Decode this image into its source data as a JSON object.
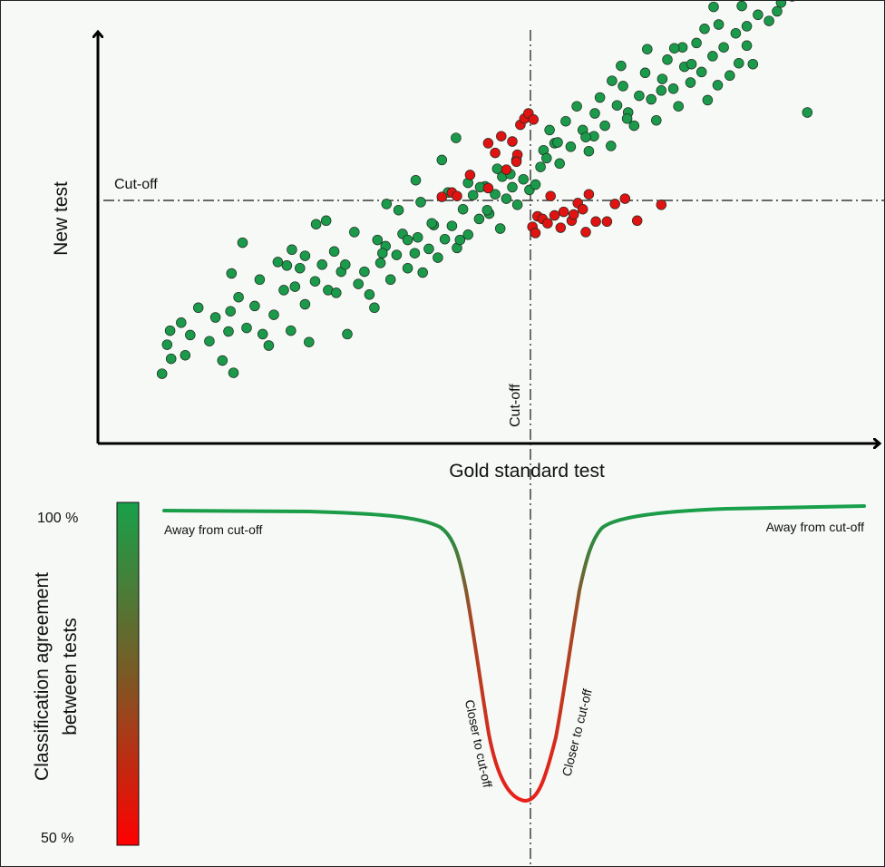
{
  "scatter": {
    "y_axis_label": "New test",
    "x_axis_label": "Gold standard test",
    "h_cutoff_label": "Cut-off",
    "v_cutoff_label": "Cut-off",
    "colors": {
      "agree": "#1a9a4a",
      "disagree": "#e01212",
      "stroke": "#1f2d1f"
    },
    "points": [
      [
        -3.66,
        -1.97,
        0
      ],
      [
        -3.57,
        -1.8,
        0
      ],
      [
        -3.61,
        -1.64,
        0
      ],
      [
        -3.58,
        -1.48,
        0
      ],
      [
        -3.47,
        -1.39,
        0
      ],
      [
        -3.43,
        -1.76,
        0
      ],
      [
        -3.38,
        -1.53,
        0
      ],
      [
        -3.3,
        -1.22,
        0
      ],
      [
        -3.19,
        -1.6,
        0
      ],
      [
        -3.13,
        -1.33,
        0
      ],
      [
        -3.06,
        -1.82,
        0
      ],
      [
        -3.0,
        -1.49,
        0
      ],
      [
        -2.95,
        -1.96,
        0
      ],
      [
        -2.97,
        -0.83,
        0
      ],
      [
        -2.9,
        -1.1,
        0
      ],
      [
        -2.82,
        -1.45,
        0
      ],
      [
        -2.74,
        -1.2,
        0
      ],
      [
        -2.69,
        -0.9,
        0
      ],
      [
        -2.6,
        -1.65,
        0
      ],
      [
        -2.55,
        -1.3,
        0
      ],
      [
        -2.51,
        -0.7,
        0
      ],
      [
        -2.45,
        -1.02,
        0
      ],
      [
        -2.38,
        -1.48,
        0
      ],
      [
        -2.34,
        -0.98,
        0
      ],
      [
        -2.29,
        -0.77,
        0
      ],
      [
        -2.24,
        -1.18,
        0
      ],
      [
        -2.2,
        -1.61,
        0
      ],
      [
        -2.14,
        -0.92,
        0
      ],
      [
        -2.07,
        -0.73,
        0
      ],
      [
        -2.01,
        -1.02,
        0
      ],
      [
        -1.95,
        -0.58,
        0
      ],
      [
        -1.88,
        -0.81,
        0
      ],
      [
        -1.82,
        -1.52,
        0
      ],
      [
        -1.71,
        -0.95,
        0
      ],
      [
        -1.65,
        -0.81,
        0
      ],
      [
        -1.6,
        -1.07,
        0
      ],
      [
        -1.55,
        -1.22,
        0
      ],
      [
        -1.49,
        -0.71,
        0
      ],
      [
        -1.44,
        -0.52,
        0
      ],
      [
        -1.39,
        -0.9,
        0
      ],
      [
        -1.33,
        -0.62,
        0
      ],
      [
        -1.27,
        -0.38,
        0
      ],
      [
        -1.22,
        -0.77,
        0
      ],
      [
        -1.15,
        -0.6,
        0
      ],
      [
        -1.12,
        -0.42,
        0
      ],
      [
        -1.07,
        -0.82,
        0
      ],
      [
        -1.01,
        -0.55,
        0
      ],
      [
        -0.96,
        -0.28,
        0
      ],
      [
        -0.92,
        -0.65,
        0
      ],
      [
        -0.85,
        -0.44,
        0
      ],
      [
        -0.78,
        -0.29,
        0
      ],
      [
        -0.73,
        -0.54,
        0
      ],
      [
        -0.67,
        -0.1,
        0
      ],
      [
        -0.62,
        -0.39,
        0
      ],
      [
        -0.57,
        0.06,
        0
      ],
      [
        -0.51,
        -0.21,
        0
      ],
      [
        -0.45,
        0.16,
        0
      ],
      [
        -0.41,
        -0.15,
        0
      ],
      [
        -0.35,
        0.07,
        0
      ],
      [
        -0.3,
        -0.32,
        0
      ],
      [
        -0.24,
        0.02,
        0
      ],
      [
        -0.18,
        0.15,
        0
      ],
      [
        -0.13,
        -0.05,
        0
      ],
      [
        -0.07,
        0.24,
        0
      ],
      [
        -0.01,
        0.12,
        0
      ],
      [
        -2.86,
        -0.48,
        0
      ],
      [
        -2.42,
        -0.74,
        0
      ],
      [
        -2.13,
        -0.27,
        0
      ],
      [
        -1.84,
        -0.73,
        0
      ],
      [
        -1.52,
        -0.45,
        0
      ],
      [
        -1.31,
        -0.11,
        0
      ],
      [
        -1.09,
        -0.02,
        0
      ],
      [
        -0.98,
        -0.26,
        0
      ],
      [
        -0.82,
        0.09,
        0
      ],
      [
        -0.62,
        0.2,
        0
      ],
      [
        -0.43,
        -0.11,
        0
      ],
      [
        -0.28,
        0.27,
        0
      ],
      [
        -0.14,
        0.46,
        0
      ],
      [
        -2.66,
        -1.52,
        0
      ],
      [
        -2.37,
        -0.56,
        0
      ],
      [
        -2.03,
        -0.23,
        0
      ],
      [
        -1.75,
        -0.36,
        0
      ],
      [
        -1.43,
        -0.04,
        0
      ],
      [
        -1.14,
        0.23,
        0
      ],
      [
        -0.88,
        0.46,
        0
      ],
      [
        -0.74,
        0.71,
        0
      ],
      [
        -0.33,
        0.36,
        0
      ],
      [
        -2.98,
        -1.26,
        0
      ],
      [
        -2.24,
        -0.63,
        0
      ],
      [
        -1.93,
        -1.05,
        0
      ],
      [
        -1.47,
        -0.6,
        0
      ],
      [
        -1.22,
        -0.45,
        0
      ],
      [
        -0.7,
        -0.45,
        0
      ],
      [
        -0.5,
        0.15,
        0
      ],
      [
        -0.2,
        0.3,
        0
      ],
      [
        0.05,
        0.18,
        0
      ],
      [
        0.1,
        0.38,
        0
      ],
      [
        0.13,
        0.57,
        0
      ],
      [
        0.19,
        0.8,
        0
      ],
      [
        0.24,
        0.65,
        0
      ],
      [
        0.29,
        0.42,
        0
      ],
      [
        0.35,
        0.9,
        0
      ],
      [
        0.4,
        0.61,
        0
      ],
      [
        0.46,
        1.07,
        0
      ],
      [
        0.52,
        0.8,
        0
      ],
      [
        0.58,
        0.56,
        0
      ],
      [
        0.64,
        0.99,
        0
      ],
      [
        0.69,
        1.17,
        0
      ],
      [
        0.74,
        0.85,
        0
      ],
      [
        0.8,
        0.62,
        0
      ],
      [
        0.86,
        1.08,
        0
      ],
      [
        0.92,
        1.3,
        0
      ],
      [
        0.97,
        1.0,
        0
      ],
      [
        1.03,
        0.85,
        0
      ],
      [
        1.08,
        1.19,
        0
      ],
      [
        1.14,
        1.45,
        0
      ],
      [
        1.2,
        1.15,
        0
      ],
      [
        1.25,
        0.91,
        0
      ],
      [
        1.31,
        1.38,
        0
      ],
      [
        1.36,
        1.6,
        0
      ],
      [
        1.42,
        1.27,
        0
      ],
      [
        1.47,
        1.07,
        0
      ],
      [
        1.53,
        1.52,
        0
      ],
      [
        1.59,
        1.34,
        0
      ],
      [
        1.65,
        1.79,
        0
      ],
      [
        1.7,
        1.46,
        0
      ],
      [
        1.76,
        1.14,
        0
      ],
      [
        1.81,
        1.64,
        0
      ],
      [
        1.87,
        2.0,
        0
      ],
      [
        1.92,
        1.74,
        0
      ],
      [
        1.98,
        1.42,
        0
      ],
      [
        2.04,
        1.9,
        0
      ],
      [
        2.1,
        2.21,
        0
      ],
      [
        2.15,
        1.76,
        0
      ],
      [
        2.21,
        1.55,
        0
      ],
      [
        2.26,
        2.11,
        0
      ],
      [
        2.32,
        2.38,
        0
      ],
      [
        2.37,
        2.04,
        0
      ],
      [
        2.43,
        2.51,
        0
      ],
      [
        2.49,
        2.25,
        0
      ],
      [
        2.54,
        2.62,
        0
      ],
      [
        2.6,
        2.32,
        0
      ],
      [
        2.66,
        2.71,
        0
      ],
      [
        2.71,
        2.48,
        0
      ],
      [
        2.77,
        2.82,
        0
      ],
      [
        2.82,
        2.55,
        0
      ],
      [
        2.88,
        2.9,
        0
      ],
      [
        2.94,
        2.67,
        0
      ],
      [
        2.99,
        3.0,
        0
      ],
      [
        3.05,
        2.76,
        0
      ],
      [
        3.1,
        2.95,
        0
      ],
      [
        3.16,
        3.08,
        0
      ],
      [
        3.22,
        2.85,
        0
      ],
      [
        3.27,
        3.12,
        0
      ],
      [
        3.33,
        2.98,
        0
      ],
      [
        3.38,
        3.2,
        0
      ],
      [
        3.44,
        3.06,
        0
      ],
      [
        0.27,
        0.66,
        0
      ],
      [
        0.63,
        0.73,
        0
      ],
      [
        0.96,
        0.93,
        0
      ],
      [
        1.3,
        1.25,
        0
      ],
      [
        1.6,
        1.55,
        0
      ],
      [
        1.86,
        1.31,
        0
      ],
      [
        2.15,
        1.98,
        0
      ],
      [
        2.45,
        2.15,
        0
      ],
      [
        2.75,
        1.0,
        0
      ],
      [
        3.01,
        2.6,
        0
      ],
      [
        0.81,
        1.36,
        0
      ],
      [
        1.16,
        1.72,
        0
      ],
      [
        1.51,
        1.74,
        0
      ],
      [
        1.82,
        2.2,
        0
      ],
      [
        2.07,
        1.56,
        0
      ],
      [
        2.38,
        2.86,
        0
      ],
      [
        2.68,
        2.56,
        0
      ],
      [
        3.23,
        3.23,
        0
      ],
      [
        0.16,
        0.48,
        0
      ],
      [
        0.55,
        0.72,
        0
      ],
      [
        0.9,
        1.53,
        0
      ],
      [
        1.43,
        1.73,
        0
      ],
      [
        1.73,
        1.95,
        0
      ],
      [
        2.6,
        2.92,
        0
      ],
      [
        2.93,
        3.18,
        0
      ],
      [
        -0.88,
        0.04,
        1
      ],
      [
        -0.78,
        0.09,
        1
      ],
      [
        -0.73,
        0.05,
        1
      ],
      [
        -0.6,
        0.29,
        1
      ],
      [
        -0.42,
        0.65,
        1
      ],
      [
        -0.35,
        0.54,
        1
      ],
      [
        -0.29,
        0.73,
        1
      ],
      [
        -0.24,
        0.35,
        1
      ],
      [
        -0.18,
        0.67,
        1
      ],
      [
        -0.13,
        0.52,
        1
      ],
      [
        -0.1,
        0.86,
        1
      ],
      [
        -0.06,
        0.93,
        1
      ],
      [
        -0.02,
        0.99,
        1
      ],
      [
        0.03,
        0.92,
        1
      ],
      [
        -0.14,
        0.44,
        1
      ],
      [
        -0.42,
        0.14,
        1
      ],
      [
        0.07,
        -0.18,
        1
      ],
      [
        0.12,
        -0.21,
        1
      ],
      [
        0.02,
        -0.3,
        1
      ],
      [
        0.05,
        -0.37,
        1
      ],
      [
        0.17,
        -0.26,
        1
      ],
      [
        0.24,
        -0.17,
        1
      ],
      [
        0.3,
        -0.31,
        1
      ],
      [
        0.33,
        -0.13,
        1
      ],
      [
        0.41,
        -0.23,
        1
      ],
      [
        0.47,
        -0.03,
        1
      ],
      [
        0.52,
        -0.1,
        1
      ],
      [
        0.58,
        0.07,
        1
      ],
      [
        0.65,
        -0.24,
        1
      ],
      [
        0.76,
        -0.24,
        1
      ],
      [
        0.84,
        -0.04,
        1
      ],
      [
        0.94,
        0.02,
        1
      ],
      [
        1.06,
        -0.23,
        1
      ],
      [
        1.3,
        -0.05,
        1
      ],
      [
        0.2,
        0.05,
        1
      ],
      [
        0.43,
        -0.16,
        1
      ],
      [
        0.55,
        -0.36,
        1
      ]
    ]
  },
  "agreement": {
    "top_label": "100 %",
    "bottom_label": "50 %",
    "axis_label_line1": "Classification agreement",
    "axis_label_line2": "between tests",
    "away_left": "Away from cut-off",
    "away_right": "Away from cut-off",
    "closer_left": "Closer to cut-off",
    "closer_right": "Closer to cut-off",
    "gradient_colors": {
      "high": "#18a04a",
      "mid": "#7a5a25",
      "low": "#ff0000"
    }
  }
}
